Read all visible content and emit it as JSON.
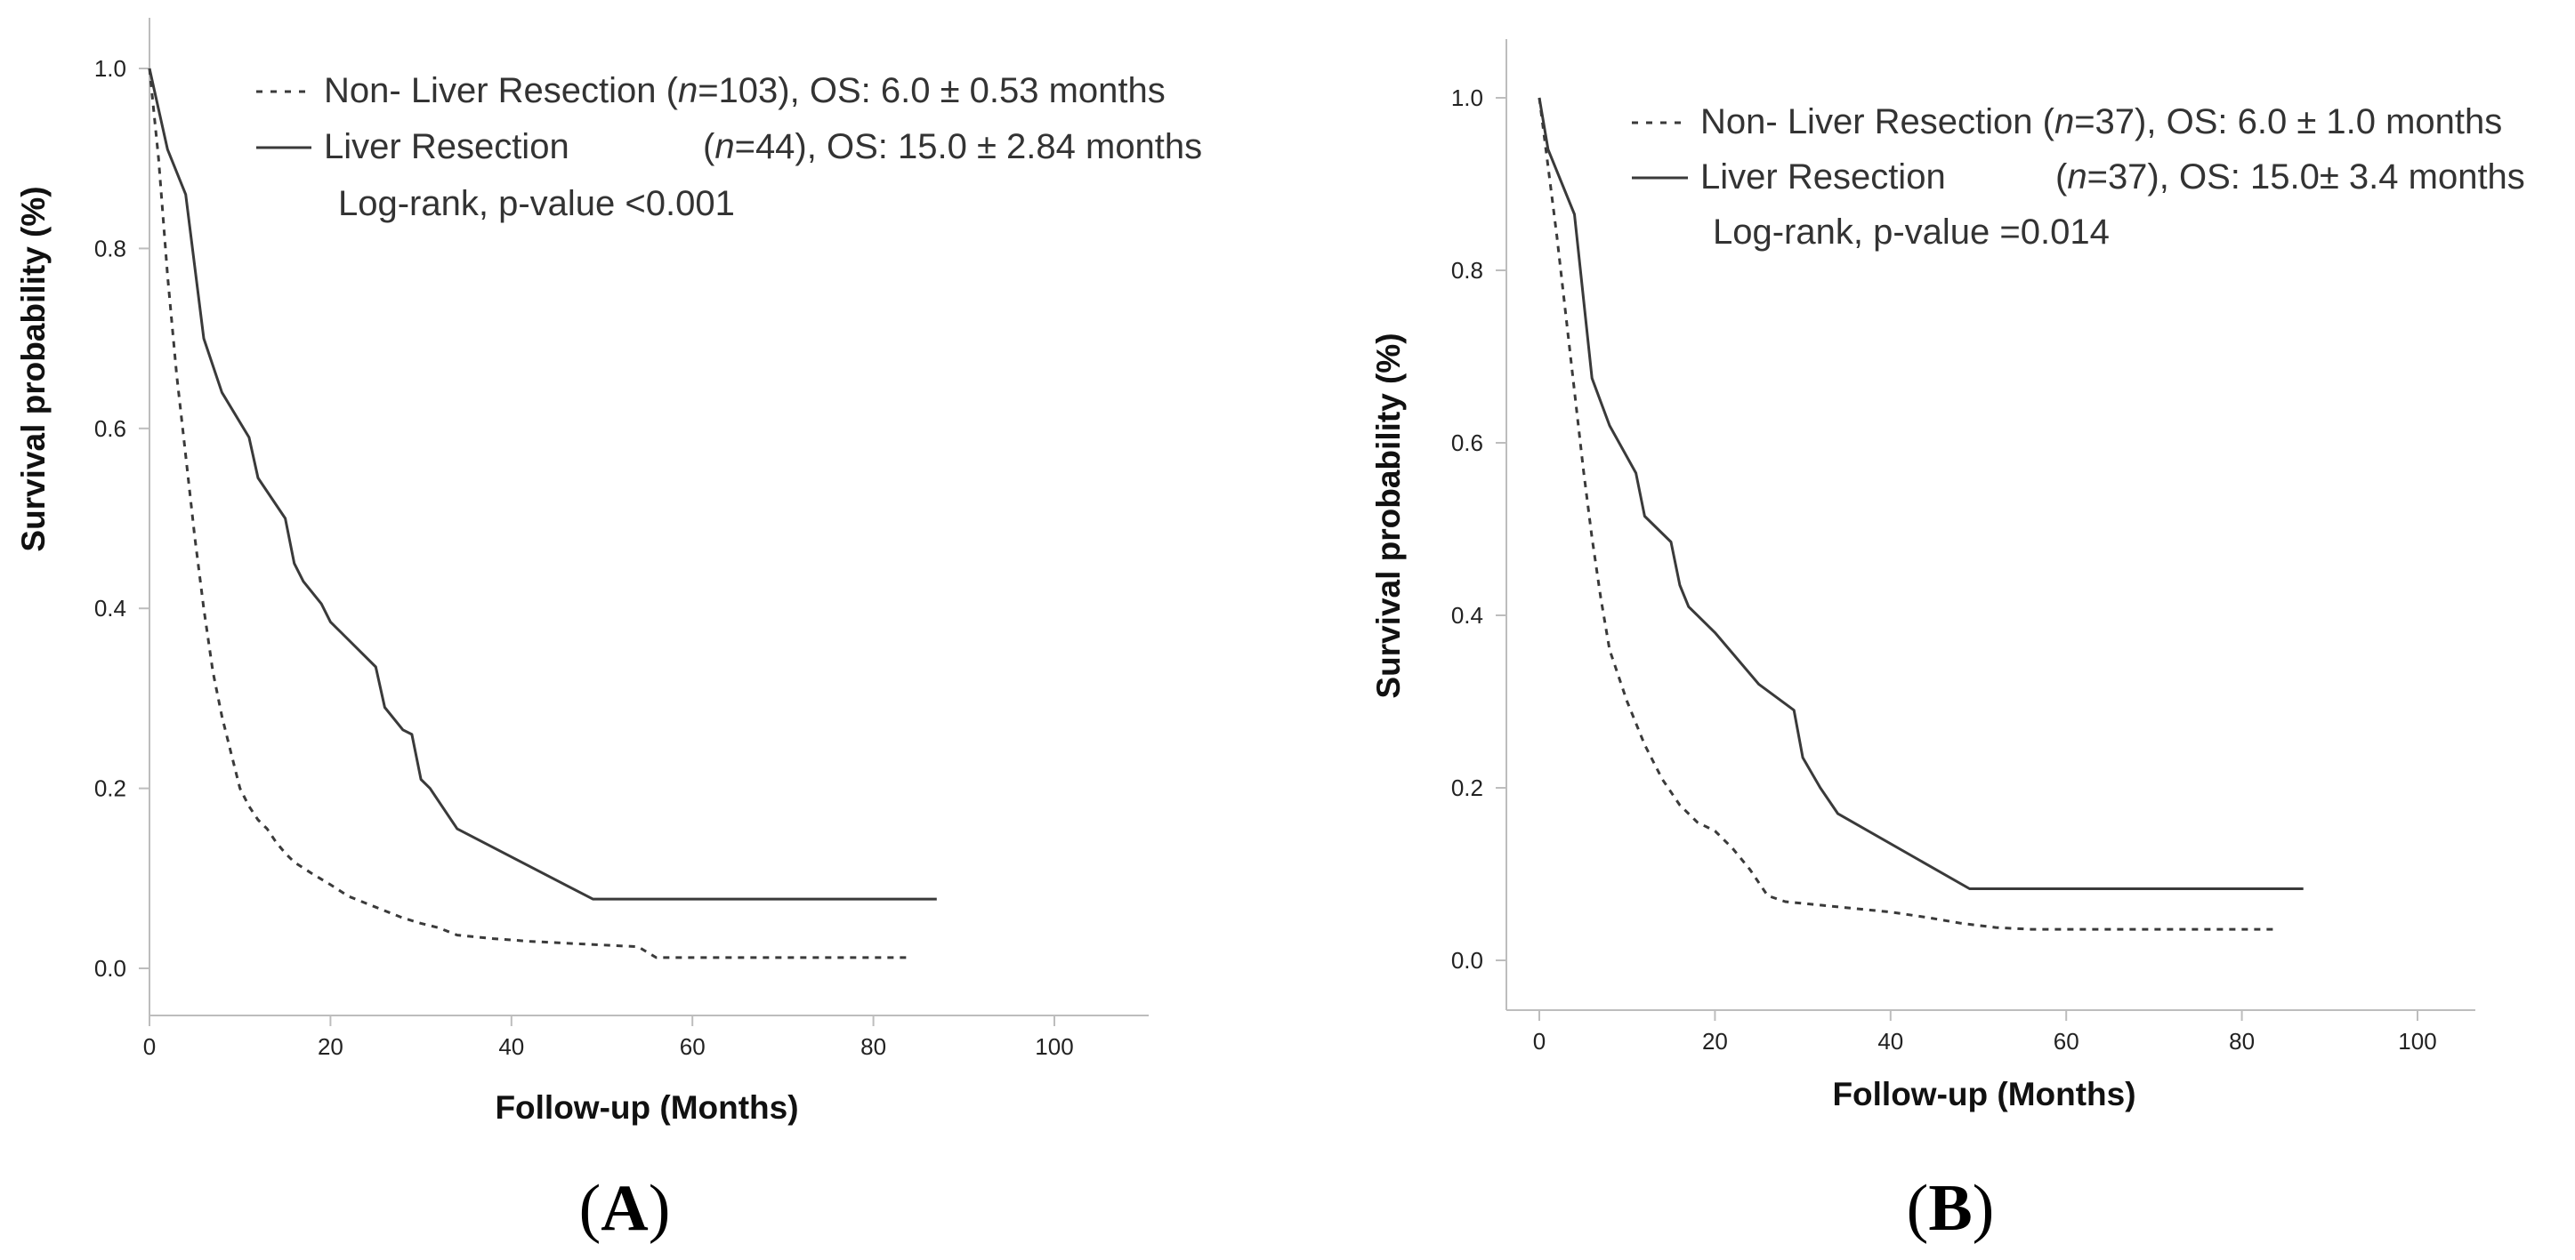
{
  "chart_data": [
    {
      "type": "line",
      "panel_label": "A",
      "xlabel": "Follow-up (Months)",
      "ylabel": "Survival probability (%)",
      "xlim": [
        -5,
        105
      ],
      "ylim": [
        -0.05,
        1.05
      ],
      "x_ticks": [
        "0",
        "20",
        "40",
        "60",
        "80",
        "100"
      ],
      "y_ticks": [
        "0.0",
        "0.2",
        "0.4",
        "0.6",
        "0.8",
        "1.0"
      ],
      "grid": false,
      "legend_position": "top",
      "legend": [
        {
          "style": "dashed",
          "parts": [
            "Non- Liver Resection (",
            "n",
            "=103), OS: 6.0 ± 0.53 months"
          ]
        },
        {
          "style": "solid",
          "parts": [
            "Liver Resection",
            "n",
            "=44), OS: 15.0 ± 2.84 months"
          ]
        }
      ],
      "annotation": "Log-rank, p-value <0.001",
      "series": [
        {
          "name": "Non- Liver Resection",
          "style": "dashed",
          "points": [
            [
              0,
              1.0
            ],
            [
              1,
              0.9
            ],
            [
              2,
              0.77
            ],
            [
              3,
              0.66
            ],
            [
              4,
              0.57
            ],
            [
              5,
              0.48
            ],
            [
              6,
              0.4
            ],
            [
              7,
              0.33
            ],
            [
              8,
              0.28
            ],
            [
              9,
              0.24
            ],
            [
              10,
              0.2
            ],
            [
              11,
              0.18
            ],
            [
              12,
              0.165
            ],
            [
              13,
              0.155
            ],
            [
              14,
              0.14
            ],
            [
              15,
              0.128
            ],
            [
              16,
              0.118
            ],
            [
              18,
              0.105
            ],
            [
              20,
              0.093
            ],
            [
              22,
              0.08
            ],
            [
              25,
              0.068
            ],
            [
              28,
              0.056
            ],
            [
              30,
              0.05
            ],
            [
              32,
              0.045
            ],
            [
              34,
              0.037
            ],
            [
              38,
              0.033
            ],
            [
              42,
              0.03
            ],
            [
              46,
              0.028
            ],
            [
              50,
              0.026
            ],
            [
              54,
              0.024
            ],
            [
              56,
              0.012
            ],
            [
              84,
              0.012
            ]
          ]
        },
        {
          "name": "Liver Resection",
          "style": "solid",
          "points": [
            [
              0,
              1.0
            ],
            [
              2,
              0.91
            ],
            [
              4,
              0.86
            ],
            [
              6,
              0.7
            ],
            [
              8,
              0.64
            ],
            [
              11,
              0.59
            ],
            [
              12,
              0.545
            ],
            [
              15,
              0.5
            ],
            [
              16,
              0.45
            ],
            [
              17,
              0.43
            ],
            [
              19,
              0.405
            ],
            [
              20,
              0.385
            ],
            [
              25,
              0.335
            ],
            [
              26,
              0.29
            ],
            [
              28,
              0.265
            ],
            [
              29,
              0.26
            ],
            [
              30,
              0.21
            ],
            [
              31,
              0.2
            ],
            [
              34,
              0.155
            ],
            [
              49,
              0.077
            ],
            [
              87,
              0.077
            ]
          ]
        }
      ]
    },
    {
      "type": "line",
      "panel_label": "B",
      "xlabel": "Follow-up (Months)",
      "ylabel": "Survival probability (%)",
      "xlim": [
        -5,
        105
      ],
      "ylim": [
        -0.05,
        1.05
      ],
      "x_ticks": [
        "0",
        "20",
        "40",
        "60",
        "80",
        "100"
      ],
      "y_ticks": [
        "0.0",
        "0.2",
        "0.4",
        "0.6",
        "0.8",
        "1.0"
      ],
      "grid": false,
      "legend_position": "top",
      "legend": [
        {
          "style": "dashed",
          "parts": [
            "Non- Liver Resection (",
            "n",
            "=37), OS:  6.0 ± 1.0 months"
          ]
        },
        {
          "style": "solid",
          "parts": [
            "Liver Resection",
            "n",
            "=37), OS: 15.0± 3.4 months"
          ]
        }
      ],
      "annotation": "Log-rank, p-value =0.014",
      "series": [
        {
          "name": "Non- Liver Resection",
          "style": "dashed",
          "points": [
            [
              0,
              1.0
            ],
            [
              1,
              0.92
            ],
            [
              2,
              0.84
            ],
            [
              3,
              0.75
            ],
            [
              4,
              0.66
            ],
            [
              5,
              0.57
            ],
            [
              6,
              0.49
            ],
            [
              7,
              0.42
            ],
            [
              8,
              0.36
            ],
            [
              10,
              0.3
            ],
            [
              12,
              0.25
            ],
            [
              14,
              0.21
            ],
            [
              16,
              0.18
            ],
            [
              18,
              0.16
            ],
            [
              20,
              0.15
            ],
            [
              22,
              0.13
            ],
            [
              24,
              0.105
            ],
            [
              26,
              0.075
            ],
            [
              28,
              0.068
            ],
            [
              32,
              0.064
            ],
            [
              36,
              0.06
            ],
            [
              40,
              0.056
            ],
            [
              44,
              0.05
            ],
            [
              48,
              0.043
            ],
            [
              52,
              0.038
            ],
            [
              56,
              0.036
            ],
            [
              84,
              0.036
            ]
          ]
        },
        {
          "name": "Liver Resection",
          "style": "solid",
          "points": [
            [
              0,
              1.0
            ],
            [
              1,
              0.94
            ],
            [
              4,
              0.865
            ],
            [
              6,
              0.675
            ],
            [
              8,
              0.62
            ],
            [
              11,
              0.565
            ],
            [
              12,
              0.515
            ],
            [
              15,
              0.485
            ],
            [
              16,
              0.435
            ],
            [
              17,
              0.41
            ],
            [
              20,
              0.38
            ],
            [
              25,
              0.32
            ],
            [
              29,
              0.29
            ],
            [
              30,
              0.235
            ],
            [
              32,
              0.2
            ],
            [
              34,
              0.17
            ],
            [
              49,
              0.083
            ],
            [
              87,
              0.083
            ]
          ]
        }
      ]
    }
  ]
}
